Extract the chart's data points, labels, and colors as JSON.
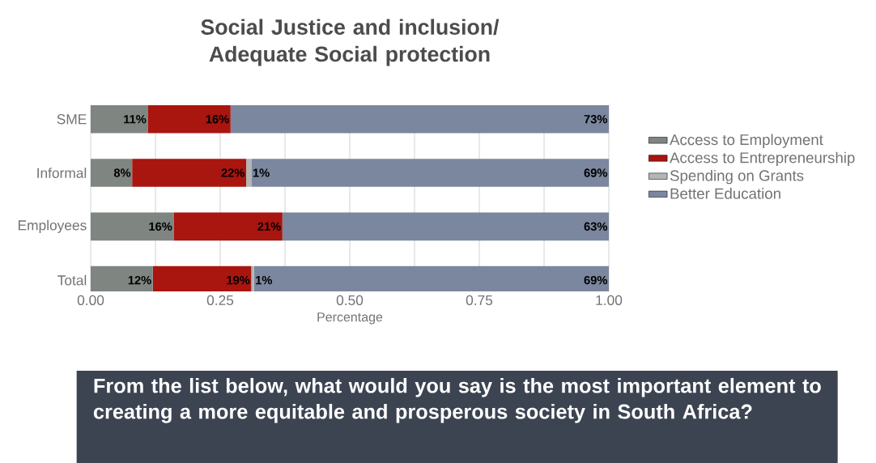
{
  "chart_data": {
    "type": "bar",
    "orientation": "horizontal",
    "stacked": true,
    "title": "Social Justice and inclusion/ Adequate Social protection",
    "xlabel": "Percentage",
    "categories": [
      "SME",
      "Informal",
      "Employees",
      "Total"
    ],
    "series": [
      {
        "name": "Access to Employment",
        "color": "#7f8580",
        "values": [
          0.11,
          0.08,
          0.16,
          0.12
        ],
        "value_labels": [
          "11%",
          "8%",
          "16%",
          "12%"
        ]
      },
      {
        "name": "Access to Entrepreneurship",
        "color": "#a9150f",
        "values": [
          0.16,
          0.22,
          0.21,
          0.19
        ],
        "value_labels": [
          "16%",
          "22%",
          "21%",
          "19%"
        ]
      },
      {
        "name": "Spending on Grants",
        "color": "#b5b5b5",
        "values": [
          0,
          0.01,
          0,
          0.005
        ],
        "value_labels": [
          null,
          "1%",
          null,
          "1%"
        ]
      },
      {
        "name": "Better Education",
        "color": "#7a879e",
        "values": [
          0.73,
          0.69,
          0.63,
          0.685
        ],
        "value_labels": [
          "73%",
          "69%",
          "63%",
          "69%"
        ]
      }
    ],
    "xlim": [
      0,
      1
    ],
    "xticks": [
      {
        "value": 0,
        "label": "0.00"
      },
      {
        "value": 0.125,
        "label": null
      },
      {
        "value": 0.25,
        "label": "0.25"
      },
      {
        "value": 0.375,
        "label": null
      },
      {
        "value": 0.5,
        "label": "0.50"
      },
      {
        "value": 0.625,
        "label": null
      },
      {
        "value": 0.75,
        "label": "0.75"
      },
      {
        "value": 0.875,
        "label": null
      },
      {
        "value": 1,
        "label": "1.00"
      }
    ],
    "grid": "x",
    "legend": "right",
    "annotations": [
      "From the list below, what would you say is the most important element to creating a more equitable and prosperous society in South Africa?"
    ]
  }
}
